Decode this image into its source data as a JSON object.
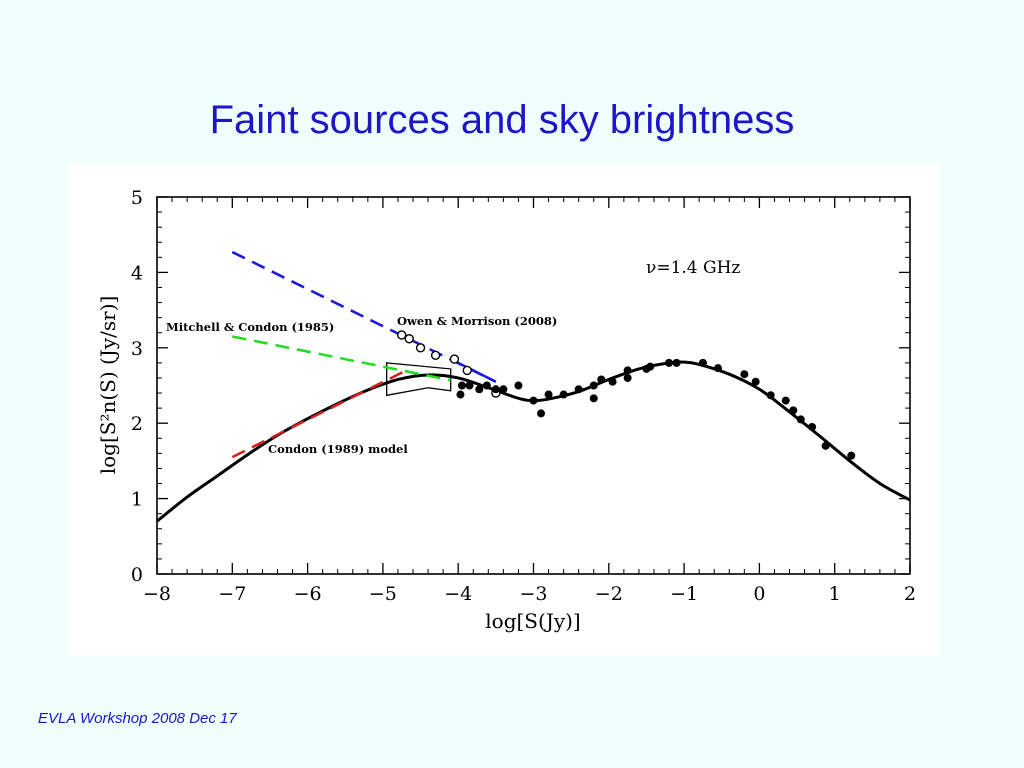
{
  "slide": {
    "title": "Faint sources and sky brightness",
    "footer": "EVLA Workshop 2008 Dec 17"
  },
  "colors": {
    "title": "#1d16c8",
    "background": "#effffe",
    "blue_line": "#1a1ad6",
    "green_line": "#22dd22",
    "red_line": "#d42020"
  },
  "chart_data": {
    "type": "line",
    "xlabel": "log[S(Jy)]",
    "ylabel": "log[S²n(S)  (Jy/sr)]",
    "xlim": [
      -8,
      2
    ],
    "ylim": [
      0,
      5
    ],
    "x_ticks": [
      -8,
      -7,
      -6,
      -5,
      -4,
      -3,
      -2,
      -1,
      0,
      1,
      2
    ],
    "y_ticks": [
      0,
      1,
      2,
      3,
      4,
      5
    ],
    "x_tick_labels": [
      "−8",
      "−7",
      "−6",
      "−5",
      "−4",
      "−3",
      "−2",
      "−1",
      "0",
      "1",
      "2"
    ],
    "y_tick_labels": [
      "0",
      "1",
      "2",
      "3",
      "4",
      "5"
    ],
    "grid": false,
    "frequency_label": "ν=1.4  GHz",
    "annotations": [
      {
        "text": "Owen & Morrison (2008)",
        "x": -4.8,
        "y": 3.33
      },
      {
        "text": "Mitchell & Condon (1985)",
        "x": -8.0,
        "y": 3.23
      },
      {
        "text": "Condon (1989) model",
        "x": -6.6,
        "y": 1.62
      }
    ],
    "model_curve": {
      "x": [
        -8,
        -7.6,
        -7.2,
        -6.8,
        -6.4,
        -6.0,
        -5.6,
        -5.2,
        -4.8,
        -4.4,
        -4.0,
        -3.6,
        -3.2,
        -3.0,
        -2.8,
        -2.4,
        -2.0,
        -1.6,
        -1.2,
        -1.0,
        -0.8,
        -0.4,
        0.0,
        0.4,
        0.8,
        1.2,
        1.6,
        2.0
      ],
      "y": [
        0.7,
        1.02,
        1.3,
        1.58,
        1.84,
        2.06,
        2.26,
        2.44,
        2.58,
        2.64,
        2.6,
        2.47,
        2.33,
        2.3,
        2.32,
        2.42,
        2.58,
        2.72,
        2.8,
        2.81,
        2.78,
        2.65,
        2.45,
        2.15,
        1.83,
        1.5,
        1.2,
        0.98
      ]
    },
    "dashed_lines": [
      {
        "label": "blue",
        "x": [
          -7.0,
          -3.5
        ],
        "y": [
          4.27,
          2.55
        ]
      },
      {
        "label": "green",
        "x": [
          -7.0,
          -4.1
        ],
        "y": [
          3.15,
          2.57
        ]
      },
      {
        "label": "red",
        "x": [
          -7.0,
          -4.65
        ],
        "y": [
          1.55,
          2.72
        ]
      }
    ],
    "solid_segment": {
      "x": [
        -4.1,
        -3.5
      ],
      "y": [
        2.85,
        2.55
      ]
    },
    "open_circles": {
      "x": [
        -4.75,
        -4.65,
        -4.5,
        -4.3,
        -4.05,
        -3.88,
        -3.5
      ],
      "y": [
        3.17,
        3.12,
        3.0,
        2.9,
        2.85,
        2.7,
        2.4
      ]
    },
    "filled_points": {
      "x": [
        -3.97,
        -3.95,
        -3.85,
        -3.72,
        -3.62,
        -3.5,
        -3.4,
        -3.2,
        -3.0,
        -2.9,
        -2.8,
        -2.6,
        -2.4,
        -2.2,
        -2.2,
        -2.1,
        -1.95,
        -1.75,
        -1.75,
        -1.5,
        -1.45,
        -1.2,
        -1.1,
        -0.75,
        -0.55,
        -0.2,
        -0.05,
        0.15,
        0.35,
        0.45,
        0.55,
        0.7,
        0.88,
        1.22
      ],
      "y": [
        2.38,
        2.5,
        2.5,
        2.45,
        2.5,
        2.45,
        2.45,
        2.5,
        2.3,
        2.13,
        2.38,
        2.38,
        2.45,
        2.5,
        2.33,
        2.58,
        2.55,
        2.6,
        2.7,
        2.72,
        2.75,
        2.8,
        2.8,
        2.8,
        2.73,
        2.65,
        2.55,
        2.37,
        2.3,
        2.17,
        2.05,
        1.95,
        1.7,
        1.57
      ]
    },
    "box": {
      "x": [
        -4.95,
        -4.1
      ],
      "y": [
        2.37,
        2.8
      ]
    }
  }
}
